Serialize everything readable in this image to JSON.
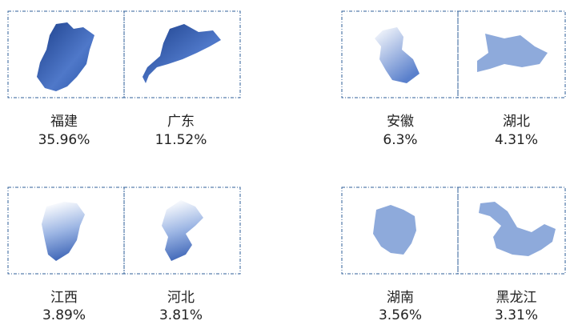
{
  "items": [
    {
      "name": "福建",
      "share": "35.96%"
    },
    {
      "name": "广东",
      "share": "11.52%"
    },
    {
      "name": "安徽",
      "share": "6.3%"
    },
    {
      "name": "湖北",
      "share": "4.31%"
    },
    {
      "name": "江西",
      "share": "3.89%"
    },
    {
      "name": "河北",
      "share": "3.81%"
    },
    {
      "name": "湖南",
      "share": "3.56%"
    },
    {
      "name": "黑龙江",
      "share": "3.31%"
    }
  ]
}
